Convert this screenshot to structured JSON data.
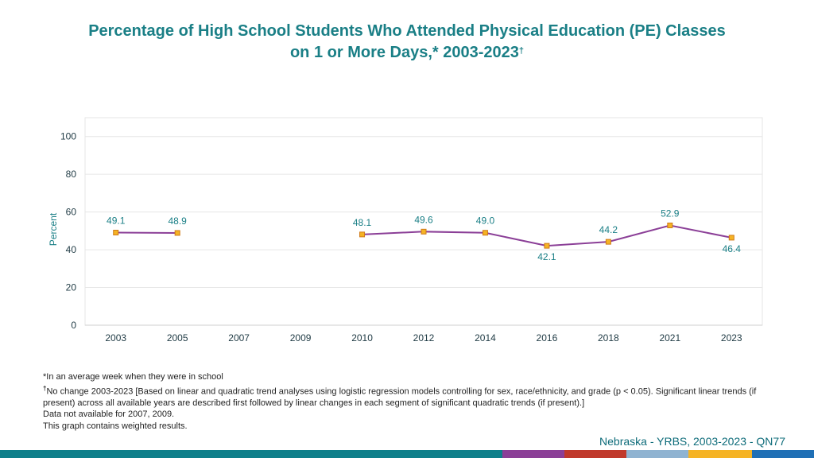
{
  "header": {
    "title_line1": "Percentage of High School Students Who Attended Physical Education (PE) Classes",
    "title_line2": "on 1 or More Days,* 2003-2023",
    "title_mark": "†"
  },
  "chart_data": {
    "type": "line",
    "title": "Percentage of High School Students Who Attended Physical Education (PE) Classes on 1 or More Days,* 2003-2023†",
    "xlabel": "",
    "ylabel": "Percent",
    "ylim": [
      0,
      110
    ],
    "yticks": [
      0,
      20,
      40,
      60,
      80,
      100
    ],
    "categories": [
      "2003",
      "2005",
      "2007",
      "2009",
      "2010",
      "2012",
      "2014",
      "2016",
      "2018",
      "2021",
      "2023"
    ],
    "series": [
      {
        "name": "Percent",
        "values": [
          49.1,
          48.9,
          null,
          null,
          48.1,
          49.6,
          49.0,
          42.1,
          44.2,
          52.9,
          46.4
        ],
        "labels": [
          "49.1",
          "48.9",
          "",
          "",
          "48.1",
          "49.6",
          "49.0",
          "42.1",
          "44.2",
          "52.9",
          "46.4"
        ]
      }
    ],
    "grid": true,
    "colors": {
      "line": "#8b3f97",
      "marker_fill": "#f5b324",
      "marker_stroke": "#d07a18",
      "label": "#1a7f86",
      "grid": "#e6e6e6",
      "axis_text": "#1f3a44"
    }
  },
  "footnotes": {
    "line1": "*In an average week when they were in school",
    "line2_mark": "†",
    "line2": "No change 2003-2023 [Based on linear and quadratic trend analyses using logistic regression models controlling for sex, race/ethnicity, and grade (p < 0.05). Significant linear trends (if present) across all available years are described first followed by linear changes in each segment of significant quadratic trends (if present).]",
    "line3": "Data not available for 2007, 2009.",
    "line4": "This graph contains weighted results."
  },
  "source": "Nebraska - YRBS, 2003-2023 - QN77",
  "bottom_bar_colors": [
    "#0e7f8a",
    "#8b3f97",
    "#c0392b",
    "#8fb3d1",
    "#f5b324",
    "#1f6fb5"
  ]
}
